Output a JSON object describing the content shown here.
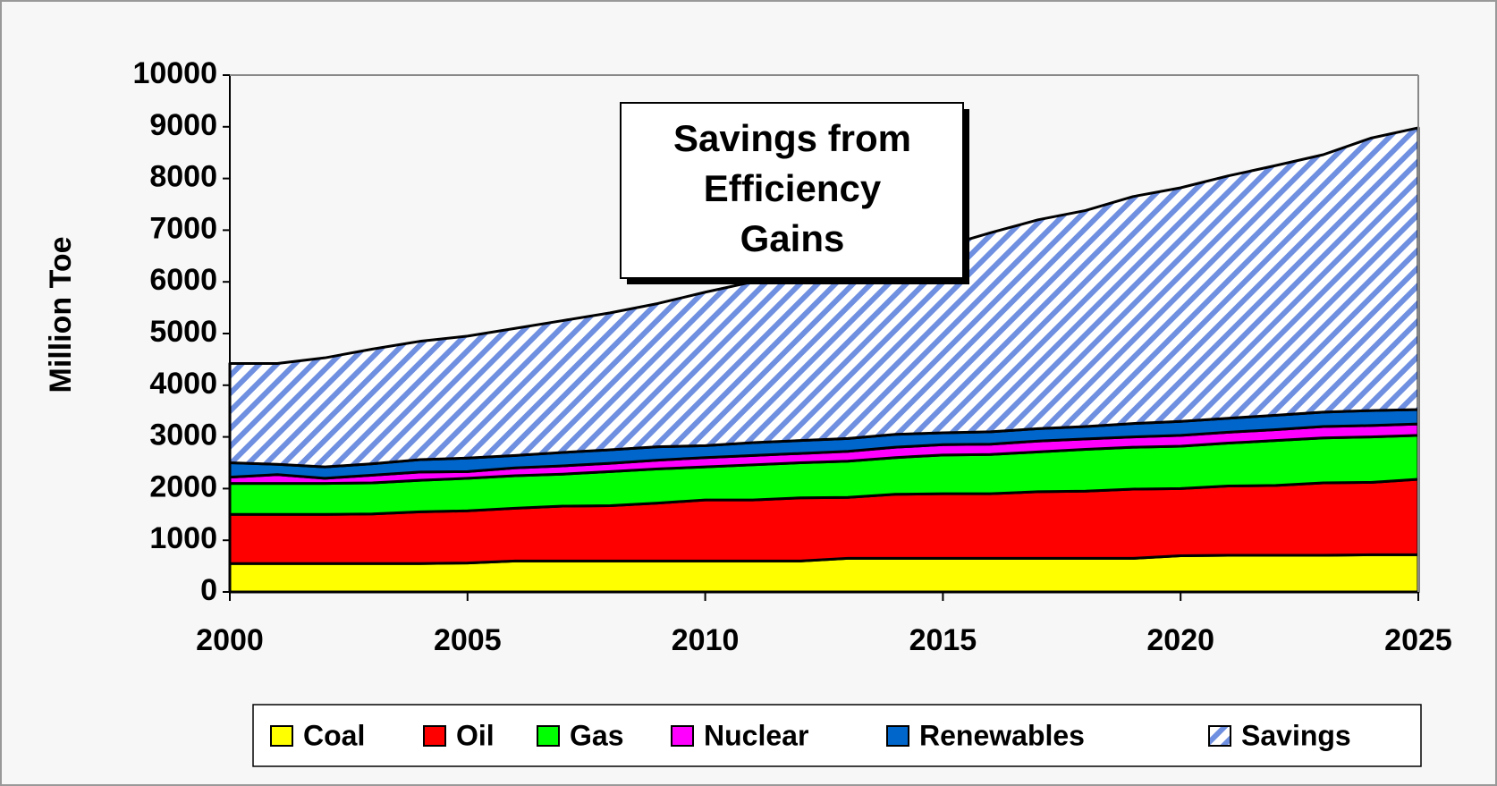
{
  "chart_data": {
    "type": "stacked-area",
    "annotation": [
      "Savings from",
      "Efficiency",
      "Gains"
    ],
    "y_label": "Million Toe",
    "x": [
      2000,
      2001,
      2002,
      2003,
      2004,
      2005,
      2006,
      2007,
      2008,
      2009,
      2010,
      2011,
      2012,
      2013,
      2014,
      2015,
      2016,
      2017,
      2018,
      2019,
      2020,
      2021,
      2022,
      2023,
      2024,
      2025
    ],
    "xlim": [
      2000,
      2025
    ],
    "xticks": [
      2000,
      2005,
      2010,
      2015,
      2020,
      2025
    ],
    "ylim": [
      0,
      10000
    ],
    "yticks": [
      0,
      1000,
      2000,
      3000,
      4000,
      5000,
      6000,
      7000,
      8000,
      9000,
      10000
    ],
    "legend": "bottom",
    "series": [
      {
        "name": "Coal",
        "color": "#ffff00",
        "values": [
          550,
          550,
          550,
          550,
          550,
          560,
          600,
          600,
          600,
          600,
          600,
          600,
          600,
          650,
          650,
          650,
          650,
          650,
          650,
          650,
          700,
          710,
          710,
          710,
          720,
          720
        ]
      },
      {
        "name": "Oil",
        "color": "#ff0000",
        "values": [
          950,
          950,
          950,
          960,
          1000,
          1010,
          1020,
          1060,
          1070,
          1120,
          1180,
          1180,
          1220,
          1180,
          1240,
          1250,
          1250,
          1290,
          1300,
          1340,
          1300,
          1340,
          1350,
          1400,
          1400,
          1460
        ]
      },
      {
        "name": "Gas",
        "color": "#00ff00",
        "values": [
          600,
          600,
          600,
          600,
          610,
          630,
          630,
          620,
          660,
          660,
          640,
          680,
          680,
          700,
          710,
          750,
          760,
          770,
          810,
          810,
          820,
          830,
          870,
          870,
          880,
          850
        ]
      },
      {
        "name": "Nuclear",
        "color": "#ff00ff",
        "values": [
          120,
          170,
          100,
          150,
          160,
          130,
          150,
          160,
          160,
          170,
          180,
          180,
          180,
          190,
          200,
          200,
          200,
          210,
          200,
          200,
          210,
          210,
          210,
          220,
          220,
          220
        ]
      },
      {
        "name": "Renewables",
        "color": "#0066cc",
        "values": [
          280,
          200,
          220,
          220,
          240,
          260,
          240,
          260,
          260,
          260,
          230,
          250,
          250,
          250,
          250,
          230,
          240,
          240,
          240,
          260,
          270,
          270,
          280,
          280,
          290,
          280
        ]
      },
      {
        "name": "Savings",
        "color": "#6f8fe0",
        "pattern": "hatch",
        "values": [
          1920,
          1950,
          2110,
          2220,
          2290,
          2360,
          2460,
          2550,
          2650,
          2770,
          2970,
          3110,
          3220,
          3330,
          3400,
          3600,
          3850,
          4040,
          4180,
          4390,
          4520,
          4690,
          4830,
          4980,
          5270,
          5450
        ]
      }
    ]
  }
}
